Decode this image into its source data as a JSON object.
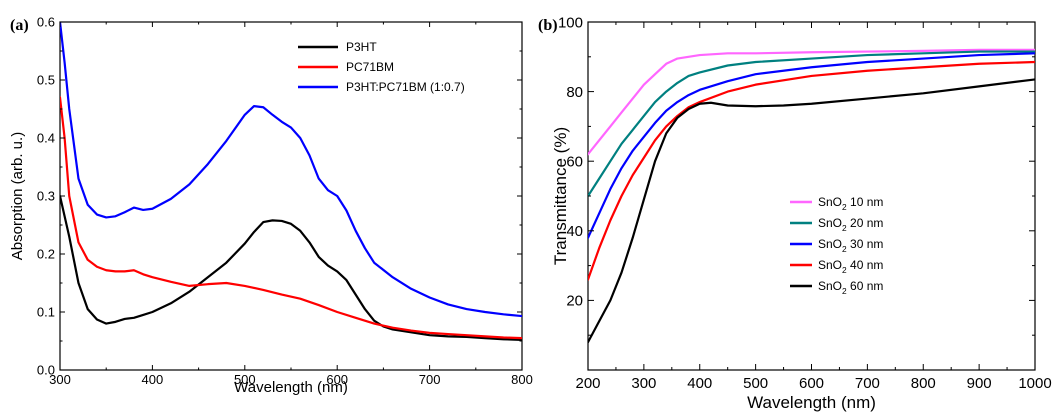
{
  "chart_data": [
    {
      "type": "line",
      "panel_label": "(a)",
      "xlabel": "Wavelength (nm)",
      "ylabel": "Absorption (arb. u.)",
      "xlim": [
        300,
        800
      ],
      "ylim": [
        0.0,
        0.6
      ],
      "xticks": [
        300,
        400,
        500,
        600,
        700,
        800
      ],
      "yticks": [
        0.0,
        0.1,
        0.2,
        0.3,
        0.4,
        0.5,
        0.6
      ],
      "x_tick_labels": [
        "300",
        "400",
        "500",
        "600",
        "700",
        "800"
      ],
      "y_tick_labels": [
        "0.0",
        "0.1",
        "0.2",
        "0.3",
        "0.4",
        "0.5",
        "0.6"
      ],
      "legend_position": "top-right",
      "grid": false,
      "series": [
        {
          "name": "P3HT",
          "color": "#000000",
          "points": [
            [
              300,
              0.3
            ],
            [
              310,
              0.23
            ],
            [
              320,
              0.15
            ],
            [
              330,
              0.105
            ],
            [
              340,
              0.087
            ],
            [
              350,
              0.08
            ],
            [
              360,
              0.083
            ],
            [
              370,
              0.088
            ],
            [
              380,
              0.09
            ],
            [
              390,
              0.095
            ],
            [
              400,
              0.1
            ],
            [
              420,
              0.115
            ],
            [
              440,
              0.135
            ],
            [
              460,
              0.16
            ],
            [
              480,
              0.185
            ],
            [
              500,
              0.218
            ],
            [
              510,
              0.238
            ],
            [
              520,
              0.255
            ],
            [
              530,
              0.258
            ],
            [
              540,
              0.257
            ],
            [
              550,
              0.252
            ],
            [
              560,
              0.24
            ],
            [
              570,
              0.22
            ],
            [
              580,
              0.195
            ],
            [
              590,
              0.18
            ],
            [
              600,
              0.17
            ],
            [
              610,
              0.155
            ],
            [
              620,
              0.13
            ],
            [
              630,
              0.105
            ],
            [
              640,
              0.085
            ],
            [
              650,
              0.075
            ],
            [
              660,
              0.07
            ],
            [
              680,
              0.065
            ],
            [
              700,
              0.06
            ],
            [
              720,
              0.058
            ],
            [
              740,
              0.057
            ],
            [
              760,
              0.055
            ],
            [
              780,
              0.053
            ],
            [
              800,
              0.052
            ]
          ]
        },
        {
          "name": "PC71BM",
          "color": "#ff0000",
          "points": [
            [
              300,
              0.47
            ],
            [
              305,
              0.4
            ],
            [
              310,
              0.3
            ],
            [
              320,
              0.22
            ],
            [
              330,
              0.19
            ],
            [
              340,
              0.178
            ],
            [
              350,
              0.172
            ],
            [
              360,
              0.17
            ],
            [
              370,
              0.17
            ],
            [
              380,
              0.172
            ],
            [
              390,
              0.165
            ],
            [
              400,
              0.16
            ],
            [
              420,
              0.152
            ],
            [
              440,
              0.145
            ],
            [
              460,
              0.148
            ],
            [
              480,
              0.15
            ],
            [
              500,
              0.145
            ],
            [
              520,
              0.138
            ],
            [
              540,
              0.13
            ],
            [
              560,
              0.123
            ],
            [
              580,
              0.112
            ],
            [
              600,
              0.1
            ],
            [
              620,
              0.09
            ],
            [
              640,
              0.08
            ],
            [
              660,
              0.073
            ],
            [
              680,
              0.068
            ],
            [
              700,
              0.064
            ],
            [
              720,
              0.062
            ],
            [
              740,
              0.06
            ],
            [
              760,
              0.058
            ],
            [
              780,
              0.056
            ],
            [
              800,
              0.055
            ]
          ]
        },
        {
          "name": "P3HT:PC71BM (1:0.7)",
          "color": "#0000ff",
          "points": [
            [
              300,
              0.6
            ],
            [
              305,
              0.53
            ],
            [
              310,
              0.45
            ],
            [
              320,
              0.33
            ],
            [
              330,
              0.285
            ],
            [
              340,
              0.268
            ],
            [
              350,
              0.263
            ],
            [
              360,
              0.265
            ],
            [
              370,
              0.272
            ],
            [
              380,
              0.28
            ],
            [
              390,
              0.276
            ],
            [
              400,
              0.278
            ],
            [
              420,
              0.295
            ],
            [
              440,
              0.32
            ],
            [
              460,
              0.355
            ],
            [
              480,
              0.395
            ],
            [
              500,
              0.44
            ],
            [
              510,
              0.455
            ],
            [
              520,
              0.453
            ],
            [
              530,
              0.44
            ],
            [
              540,
              0.428
            ],
            [
              550,
              0.418
            ],
            [
              560,
              0.4
            ],
            [
              570,
              0.37
            ],
            [
              580,
              0.33
            ],
            [
              590,
              0.31
            ],
            [
              600,
              0.3
            ],
            [
              610,
              0.275
            ],
            [
              620,
              0.24
            ],
            [
              630,
              0.21
            ],
            [
              640,
              0.185
            ],
            [
              660,
              0.16
            ],
            [
              680,
              0.14
            ],
            [
              700,
              0.125
            ],
            [
              720,
              0.113
            ],
            [
              740,
              0.105
            ],
            [
              760,
              0.1
            ],
            [
              780,
              0.096
            ],
            [
              800,
              0.093
            ]
          ]
        }
      ]
    },
    {
      "type": "line",
      "panel_label": "(b)",
      "xlabel": "Wavelength (nm)",
      "ylabel": "Transmittance (%)",
      "xlim": [
        200,
        1000
      ],
      "ylim": [
        0,
        100
      ],
      "xticks": [
        200,
        300,
        400,
        500,
        600,
        700,
        800,
        900,
        1000
      ],
      "yticks": [
        0,
        20,
        40,
        60,
        80,
        100
      ],
      "x_tick_labels": [
        "200",
        "300",
        "400",
        "500",
        "600",
        "700",
        "800",
        "900",
        "1000"
      ],
      "y_tick_labels": [
        "",
        "20",
        "40",
        "60",
        "80",
        "100"
      ],
      "legend_position": "center-right",
      "grid": false,
      "series": [
        {
          "name_parts": [
            "SnO",
            "2",
            " 10 nm"
          ],
          "color": "#ff66ff",
          "points": [
            [
              200,
              62
            ],
            [
              220,
              66
            ],
            [
              240,
              70
            ],
            [
              260,
              74
            ],
            [
              280,
              78
            ],
            [
              300,
              82
            ],
            [
              320,
              85
            ],
            [
              340,
              88
            ],
            [
              360,
              89.5
            ],
            [
              380,
              90
            ],
            [
              400,
              90.5
            ],
            [
              450,
              91
            ],
            [
              500,
              91
            ],
            [
              600,
              91.3
            ],
            [
              700,
              91.5
            ],
            [
              800,
              91.7
            ],
            [
              900,
              92
            ],
            [
              1000,
              92
            ]
          ]
        },
        {
          "name_parts": [
            "SnO",
            "2",
            " 20 nm"
          ],
          "color": "#008080",
          "points": [
            [
              200,
              50
            ],
            [
              220,
              55
            ],
            [
              240,
              60
            ],
            [
              260,
              65
            ],
            [
              280,
              69
            ],
            [
              300,
              73
            ],
            [
              320,
              77
            ],
            [
              340,
              80
            ],
            [
              360,
              82.5
            ],
            [
              380,
              84.5
            ],
            [
              400,
              85.5
            ],
            [
              450,
              87.5
            ],
            [
              500,
              88.5
            ],
            [
              600,
              89.5
            ],
            [
              700,
              90.5
            ],
            [
              800,
              91
            ],
            [
              900,
              91.5
            ],
            [
              1000,
              91.5
            ]
          ]
        },
        {
          "name_parts": [
            "SnO",
            "2",
            " 30 nm"
          ],
          "color": "#0000ff",
          "points": [
            [
              200,
              38
            ],
            [
              220,
              45
            ],
            [
              240,
              52
            ],
            [
              260,
              58
            ],
            [
              280,
              63
            ],
            [
              300,
              67
            ],
            [
              320,
              71
            ],
            [
              340,
              74.5
            ],
            [
              360,
              77
            ],
            [
              380,
              79
            ],
            [
              400,
              80.5
            ],
            [
              450,
              83
            ],
            [
              500,
              85
            ],
            [
              600,
              87
            ],
            [
              700,
              88.5
            ],
            [
              800,
              89.5
            ],
            [
              900,
              90.5
            ],
            [
              1000,
              91
            ]
          ]
        },
        {
          "name_parts": [
            "SnO",
            "2",
            " 40 nm"
          ],
          "color": "#ff0000",
          "points": [
            [
              200,
              26
            ],
            [
              220,
              35
            ],
            [
              240,
              43
            ],
            [
              260,
              50
            ],
            [
              280,
              56
            ],
            [
              300,
              61
            ],
            [
              320,
              66
            ],
            [
              340,
              70
            ],
            [
              360,
              73
            ],
            [
              380,
              75.5
            ],
            [
              400,
              77
            ],
            [
              450,
              80
            ],
            [
              500,
              82
            ],
            [
              600,
              84.5
            ],
            [
              700,
              86
            ],
            [
              800,
              87
            ],
            [
              900,
              88
            ],
            [
              1000,
              88.5
            ]
          ]
        },
        {
          "name_parts": [
            "SnO",
            "2",
            " 60 nm"
          ],
          "color": "#000000",
          "points": [
            [
              200,
              8
            ],
            [
              220,
              14
            ],
            [
              240,
              20
            ],
            [
              260,
              28
            ],
            [
              280,
              38
            ],
            [
              300,
              49
            ],
            [
              320,
              60
            ],
            [
              340,
              68
            ],
            [
              360,
              72.5
            ],
            [
              380,
              75
            ],
            [
              400,
              76.5
            ],
            [
              420,
              76.8
            ],
            [
              450,
              76
            ],
            [
              500,
              75.8
            ],
            [
              550,
              76
            ],
            [
              600,
              76.5
            ],
            [
              700,
              78
            ],
            [
              800,
              79.5
            ],
            [
              900,
              81.5
            ],
            [
              1000,
              83.5
            ]
          ]
        }
      ]
    }
  ]
}
